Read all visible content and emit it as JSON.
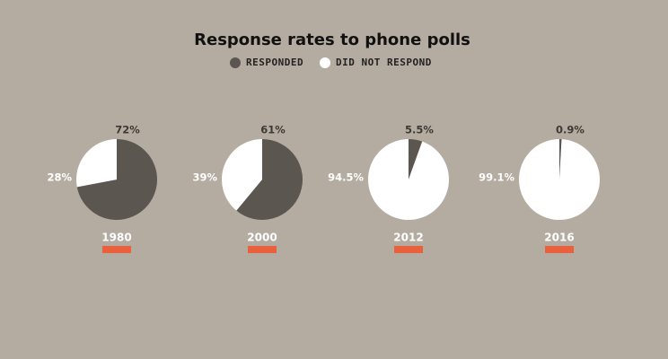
{
  "title": "Response rates to phone polls",
  "legend": {
    "labels": [
      "RESPONDED",
      "DID NOT RESPOND"
    ],
    "colors": [
      "#5b5650",
      "#ffffff"
    ]
  },
  "chart_data": [
    {
      "type": "pie",
      "title": "1980",
      "values": [
        72,
        28
      ],
      "value_labels": [
        "72%",
        "28%"
      ]
    },
    {
      "type": "pie",
      "title": "2000",
      "values": [
        61,
        39
      ],
      "value_labels": [
        "61%",
        "39%"
      ]
    },
    {
      "type": "pie",
      "title": "2012",
      "values": [
        5.5,
        94.5
      ],
      "value_labels": [
        "5.5%",
        "94.5%"
      ]
    },
    {
      "type": "pie",
      "title": "2016",
      "values": [
        0.9,
        99.1
      ],
      "value_labels": [
        "0.9%",
        "99.1%"
      ]
    }
  ]
}
